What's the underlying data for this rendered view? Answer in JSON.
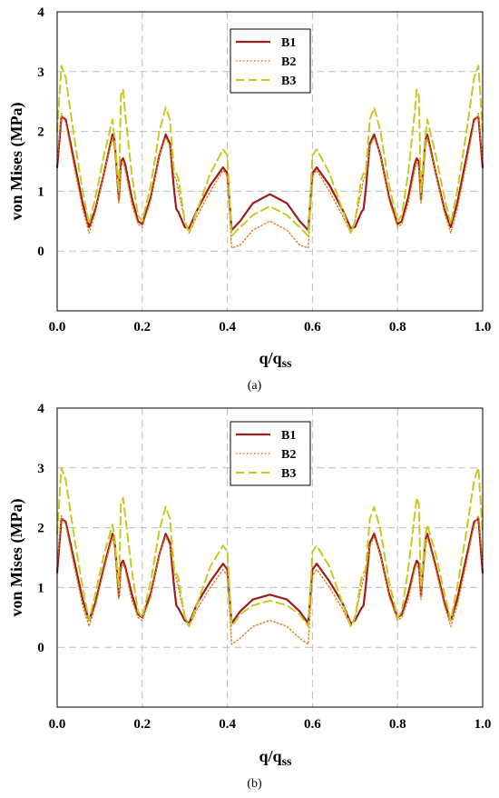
{
  "chart_data": [
    {
      "type": "line",
      "caption": "(a)",
      "xlabel_main": "q/q",
      "xlabel_sub": "ss",
      "ylabel": "von Mises (MPa)",
      "xlim": [
        0,
        1
      ],
      "ylim": [
        -1,
        4
      ],
      "xticks": [
        "0.0",
        "0.2",
        "0.4",
        "0.6",
        "0.8",
        "1.0"
      ],
      "yticks": [
        "0",
        "1",
        "2",
        "3",
        "4"
      ],
      "grid": true,
      "legend_position": "top-center",
      "series": [
        {
          "name": "B1",
          "style": "solid",
          "color": "#9c1c1c",
          "x": [
            0,
            0.01,
            0.02,
            0.04,
            0.06,
            0.075,
            0.09,
            0.11,
            0.13,
            0.135,
            0.145,
            0.15,
            0.155,
            0.16,
            0.175,
            0.19,
            0.2,
            0.22,
            0.24,
            0.255,
            0.265,
            0.275,
            0.28,
            0.285,
            0.3,
            0.31,
            0.33,
            0.36,
            0.39,
            0.4,
            0.41,
            0.43,
            0.46,
            0.5,
            0.54,
            0.57,
            0.59,
            0.6,
            0.61,
            0.64,
            0.67,
            0.69,
            0.7,
            0.715,
            0.72,
            0.725,
            0.735,
            0.745,
            0.76,
            0.78,
            0.8,
            0.81,
            0.825,
            0.84,
            0.845,
            0.85,
            0.855,
            0.865,
            0.87,
            0.89,
            0.91,
            0.925,
            0.94,
            0.96,
            0.98,
            0.99,
            1.0
          ],
          "y": [
            1.4,
            2.25,
            2.2,
            1.5,
            0.8,
            0.4,
            0.7,
            1.3,
            1.95,
            1.85,
            0.85,
            1.5,
            1.55,
            1.45,
            0.9,
            0.5,
            0.45,
            0.9,
            1.6,
            1.95,
            1.8,
            1.0,
            0.7,
            0.65,
            0.4,
            0.38,
            0.7,
            1.1,
            1.4,
            1.3,
            0.35,
            0.5,
            0.8,
            0.95,
            0.8,
            0.5,
            0.35,
            1.3,
            1.4,
            1.1,
            0.7,
            0.38,
            0.4,
            0.65,
            0.7,
            1.0,
            1.8,
            1.95,
            1.6,
            0.9,
            0.45,
            0.5,
            0.9,
            1.45,
            1.55,
            1.5,
            0.85,
            1.85,
            1.95,
            1.3,
            0.7,
            0.4,
            0.8,
            1.5,
            2.2,
            2.25,
            1.4
          ]
        },
        {
          "name": "B2",
          "style": "dotted",
          "color": "#e07e18",
          "x": [
            0,
            0.01,
            0.02,
            0.04,
            0.06,
            0.075,
            0.09,
            0.11,
            0.13,
            0.135,
            0.145,
            0.15,
            0.155,
            0.16,
            0.175,
            0.19,
            0.2,
            0.22,
            0.24,
            0.255,
            0.265,
            0.275,
            0.28,
            0.285,
            0.3,
            0.31,
            0.33,
            0.36,
            0.39,
            0.4,
            0.41,
            0.43,
            0.46,
            0.5,
            0.54,
            0.57,
            0.59,
            0.6,
            0.61,
            0.64,
            0.67,
            0.69,
            0.7,
            0.715,
            0.72,
            0.725,
            0.735,
            0.745,
            0.76,
            0.78,
            0.8,
            0.81,
            0.825,
            0.84,
            0.845,
            0.85,
            0.855,
            0.865,
            0.87,
            0.89,
            0.91,
            0.925,
            0.94,
            0.96,
            0.98,
            0.99,
            1.0
          ],
          "y": [
            1.5,
            2.3,
            2.15,
            1.4,
            0.7,
            0.3,
            0.65,
            1.3,
            1.9,
            1.7,
            0.8,
            1.4,
            1.5,
            1.35,
            0.8,
            0.45,
            0.4,
            0.85,
            1.6,
            1.9,
            1.75,
            1.25,
            1.2,
            1.0,
            0.5,
            0.3,
            0.6,
            1.0,
            1.35,
            1.25,
            0.05,
            0.1,
            0.35,
            0.5,
            0.35,
            0.1,
            0.05,
            1.25,
            1.35,
            1.0,
            0.6,
            0.3,
            0.5,
            1.0,
            1.2,
            1.25,
            1.75,
            1.9,
            1.6,
            0.85,
            0.4,
            0.45,
            0.8,
            1.35,
            1.5,
            1.4,
            0.8,
            1.7,
            1.9,
            1.3,
            0.65,
            0.3,
            0.7,
            1.4,
            2.15,
            2.3,
            1.5
          ]
        },
        {
          "name": "B3",
          "style": "dashed",
          "color": "#c8c81e",
          "x": [
            0,
            0.01,
            0.02,
            0.04,
            0.06,
            0.075,
            0.09,
            0.11,
            0.13,
            0.135,
            0.145,
            0.15,
            0.155,
            0.16,
            0.175,
            0.19,
            0.2,
            0.22,
            0.24,
            0.255,
            0.265,
            0.275,
            0.28,
            0.285,
            0.3,
            0.31,
            0.33,
            0.36,
            0.39,
            0.4,
            0.41,
            0.43,
            0.46,
            0.5,
            0.54,
            0.57,
            0.59,
            0.6,
            0.61,
            0.64,
            0.67,
            0.69,
            0.7,
            0.715,
            0.72,
            0.725,
            0.735,
            0.745,
            0.76,
            0.78,
            0.8,
            0.81,
            0.825,
            0.84,
            0.845,
            0.85,
            0.855,
            0.865,
            0.87,
            0.89,
            0.91,
            0.925,
            0.94,
            0.96,
            0.98,
            0.99,
            1.0
          ],
          "y": [
            2.0,
            3.1,
            2.9,
            1.9,
            1.0,
            0.45,
            0.9,
            1.6,
            2.2,
            1.9,
            1.0,
            2.6,
            2.7,
            2.3,
            1.3,
            0.6,
            0.5,
            1.1,
            2.0,
            2.4,
            2.2,
            1.3,
            1.3,
            1.2,
            0.5,
            0.3,
            0.7,
            1.3,
            1.7,
            1.6,
            0.25,
            0.4,
            0.6,
            0.75,
            0.6,
            0.4,
            0.25,
            1.6,
            1.7,
            1.3,
            0.7,
            0.3,
            0.5,
            1.2,
            1.3,
            1.3,
            2.2,
            2.4,
            2.0,
            1.1,
            0.5,
            0.6,
            1.3,
            2.3,
            2.7,
            2.6,
            1.0,
            1.9,
            2.2,
            1.6,
            0.9,
            0.45,
            1.0,
            1.9,
            2.9,
            3.1,
            2.0
          ]
        }
      ]
    },
    {
      "type": "line",
      "caption": "(b)",
      "xlabel_main": "q/q",
      "xlabel_sub": "ss",
      "ylabel": "von Mises (MPa)",
      "xlim": [
        0,
        1
      ],
      "ylim": [
        -1,
        4
      ],
      "xticks": [
        "0.0",
        "0.2",
        "0.4",
        "0.6",
        "0.8",
        "1.0"
      ],
      "yticks": [
        "0",
        "1",
        "2",
        "3",
        "4"
      ],
      "grid": true,
      "legend_position": "top-center",
      "series": [
        {
          "name": "B1",
          "style": "solid",
          "color": "#9c1c1c",
          "x": [
            0,
            0.01,
            0.02,
            0.04,
            0.06,
            0.075,
            0.09,
            0.11,
            0.13,
            0.135,
            0.145,
            0.15,
            0.155,
            0.16,
            0.175,
            0.19,
            0.2,
            0.22,
            0.24,
            0.255,
            0.265,
            0.275,
            0.28,
            0.285,
            0.3,
            0.31,
            0.33,
            0.36,
            0.39,
            0.4,
            0.41,
            0.43,
            0.46,
            0.5,
            0.54,
            0.57,
            0.59,
            0.6,
            0.61,
            0.64,
            0.67,
            0.69,
            0.7,
            0.715,
            0.72,
            0.725,
            0.735,
            0.745,
            0.76,
            0.78,
            0.8,
            0.81,
            0.825,
            0.84,
            0.845,
            0.85,
            0.855,
            0.865,
            0.87,
            0.89,
            0.91,
            0.925,
            0.94,
            0.96,
            0.98,
            0.99,
            1.0
          ],
          "y": [
            1.25,
            2.15,
            2.1,
            1.45,
            0.8,
            0.45,
            0.75,
            1.35,
            1.9,
            1.8,
            0.85,
            1.4,
            1.45,
            1.35,
            0.9,
            0.55,
            0.5,
            0.9,
            1.55,
            1.9,
            1.75,
            1.0,
            0.7,
            0.65,
            0.45,
            0.4,
            0.75,
            1.1,
            1.4,
            1.3,
            0.4,
            0.6,
            0.8,
            0.88,
            0.8,
            0.6,
            0.4,
            1.3,
            1.4,
            1.1,
            0.75,
            0.4,
            0.45,
            0.65,
            0.7,
            1.0,
            1.75,
            1.9,
            1.55,
            0.9,
            0.5,
            0.55,
            0.9,
            1.35,
            1.45,
            1.4,
            0.85,
            1.8,
            1.9,
            1.35,
            0.75,
            0.45,
            0.8,
            1.45,
            2.1,
            2.15,
            1.25
          ]
        },
        {
          "name": "B2",
          "style": "dotted",
          "color": "#e07e18",
          "x": [
            0,
            0.01,
            0.02,
            0.04,
            0.06,
            0.075,
            0.09,
            0.11,
            0.13,
            0.135,
            0.145,
            0.15,
            0.155,
            0.16,
            0.175,
            0.19,
            0.2,
            0.22,
            0.24,
            0.255,
            0.265,
            0.275,
            0.28,
            0.285,
            0.3,
            0.31,
            0.33,
            0.36,
            0.39,
            0.4,
            0.41,
            0.43,
            0.46,
            0.5,
            0.54,
            0.57,
            0.59,
            0.6,
            0.61,
            0.64,
            0.67,
            0.69,
            0.7,
            0.715,
            0.72,
            0.725,
            0.735,
            0.745,
            0.76,
            0.78,
            0.8,
            0.81,
            0.825,
            0.84,
            0.845,
            0.85,
            0.855,
            0.865,
            0.87,
            0.89,
            0.91,
            0.925,
            0.94,
            0.96,
            0.98,
            0.99,
            1.0
          ],
          "y": [
            1.4,
            2.2,
            2.05,
            1.35,
            0.7,
            0.35,
            0.7,
            1.3,
            1.85,
            1.65,
            0.8,
            1.3,
            1.4,
            1.3,
            0.8,
            0.5,
            0.45,
            0.85,
            1.55,
            1.85,
            1.7,
            1.25,
            1.15,
            1.0,
            0.5,
            0.35,
            0.65,
            1.0,
            1.3,
            1.2,
            0.05,
            0.15,
            0.35,
            0.45,
            0.35,
            0.15,
            0.05,
            1.2,
            1.3,
            1.0,
            0.65,
            0.35,
            0.5,
            1.0,
            1.15,
            1.25,
            1.7,
            1.85,
            1.55,
            0.85,
            0.45,
            0.5,
            0.8,
            1.3,
            1.4,
            1.3,
            0.8,
            1.65,
            1.85,
            1.3,
            0.7,
            0.35,
            0.7,
            1.35,
            2.05,
            2.2,
            1.4
          ]
        },
        {
          "name": "B3",
          "style": "dashed",
          "color": "#c8c81e",
          "x": [
            0,
            0.01,
            0.02,
            0.04,
            0.06,
            0.075,
            0.09,
            0.11,
            0.13,
            0.135,
            0.145,
            0.15,
            0.155,
            0.16,
            0.175,
            0.19,
            0.2,
            0.22,
            0.24,
            0.255,
            0.265,
            0.275,
            0.28,
            0.285,
            0.3,
            0.31,
            0.33,
            0.36,
            0.39,
            0.4,
            0.41,
            0.43,
            0.46,
            0.5,
            0.54,
            0.57,
            0.59,
            0.6,
            0.61,
            0.64,
            0.67,
            0.69,
            0.7,
            0.715,
            0.72,
            0.725,
            0.735,
            0.745,
            0.76,
            0.78,
            0.8,
            0.81,
            0.825,
            0.84,
            0.845,
            0.85,
            0.855,
            0.865,
            0.87,
            0.89,
            0.91,
            0.925,
            0.94,
            0.96,
            0.98,
            0.99,
            1.0
          ],
          "y": [
            1.9,
            3.0,
            2.8,
            1.85,
            1.0,
            0.45,
            0.9,
            1.55,
            2.05,
            1.85,
            1.0,
            2.4,
            2.5,
            2.2,
            1.3,
            0.6,
            0.5,
            1.1,
            1.95,
            2.35,
            2.15,
            1.3,
            1.25,
            1.15,
            0.5,
            0.35,
            0.75,
            1.35,
            1.7,
            1.6,
            0.35,
            0.55,
            0.7,
            0.78,
            0.7,
            0.55,
            0.35,
            1.6,
            1.7,
            1.35,
            0.75,
            0.35,
            0.5,
            1.15,
            1.25,
            1.3,
            2.15,
            2.35,
            1.95,
            1.1,
            0.5,
            0.6,
            1.3,
            2.2,
            2.5,
            2.4,
            1.0,
            1.85,
            2.05,
            1.55,
            0.9,
            0.45,
            1.0,
            1.85,
            2.8,
            3.0,
            1.9
          ]
        }
      ]
    }
  ]
}
